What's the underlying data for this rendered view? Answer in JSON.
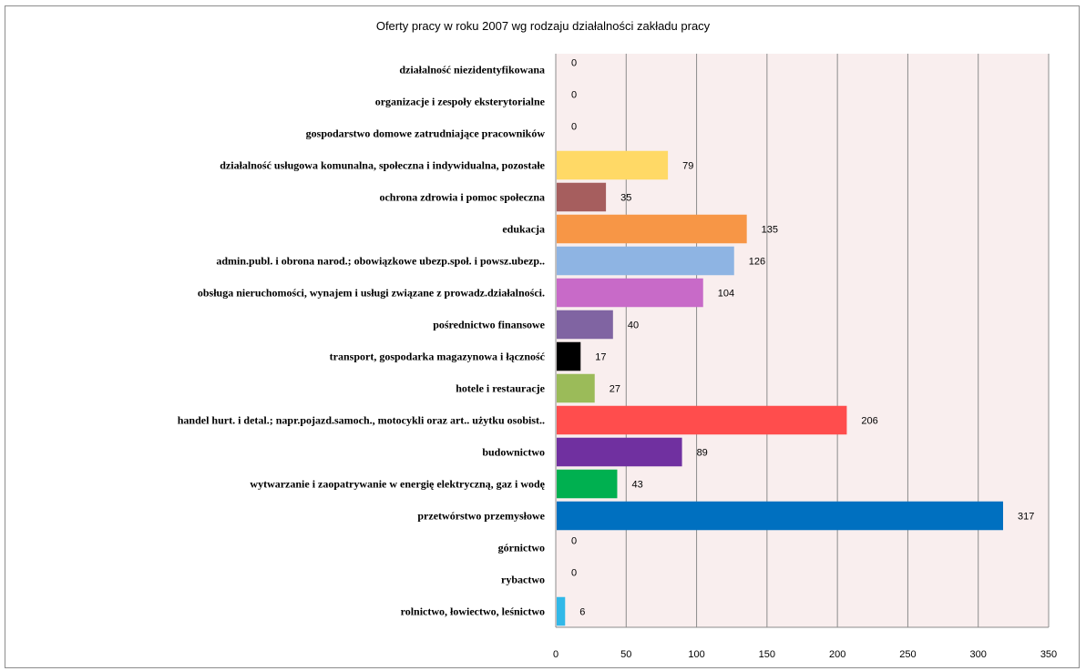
{
  "chart_data": {
    "type": "bar",
    "orientation": "horizontal",
    "title": "Oferty pracy w roku 2007 wg rodzaju działalności zakładu pracy",
    "xlabel": "",
    "ylabel": "",
    "xlim": [
      0,
      350
    ],
    "x_ticks": [
      0,
      50,
      100,
      150,
      200,
      250,
      300,
      350
    ],
    "grid": "vertical",
    "legend": "none",
    "plot_background": "#f9eeee",
    "categories": [
      "działalność niezidentyfikowana",
      "organizacje i zespoły eksterytorialne",
      "gospodarstwo domowe zatrudniające pracowników",
      "działalność usługowa komunalna, społeczna i indywidualna, pozostałe",
      "ochrona zdrowia i pomoc społeczna",
      "edukacja",
      "admin.publ. i obrona narod.; obowiązkowe ubezp.społ. i powsz.ubezp..",
      "obsługa nieruchomości, wynajem i usługi związane z prowadz.działalności.",
      "pośrednictwo finansowe",
      "transport, gospodarka magazynowa i łączność",
      "hotele i restauracje",
      "handel hurt. i detal.; napr.pojazd.samoch., motocykli oraz art.. użytku osobist..",
      "budownictwo",
      "wytwarzanie i zaopatrywanie w energię elektryczną, gaz i wodę",
      "przetwórstwo przemysłowe",
      "górnictwo",
      "rybactwo",
      "rolnictwo, łowiectwo, leśnictwo"
    ],
    "values": [
      0,
      0,
      0,
      79,
      35,
      135,
      126,
      104,
      40,
      17,
      27,
      206,
      89,
      43,
      317,
      0,
      0,
      6
    ],
    "colors": [
      "#ffd966",
      "#ffd966",
      "#ffd966",
      "#ffd966",
      "#a65e5e",
      "#f79646",
      "#8eb4e3",
      "#c86ac8",
      "#8064a2",
      "#000000",
      "#9bbb59",
      "#ff4d4d",
      "#7030a0",
      "#00b050",
      "#0070c0",
      "#31b8e8",
      "#31b8e8",
      "#31b8e8"
    ]
  }
}
